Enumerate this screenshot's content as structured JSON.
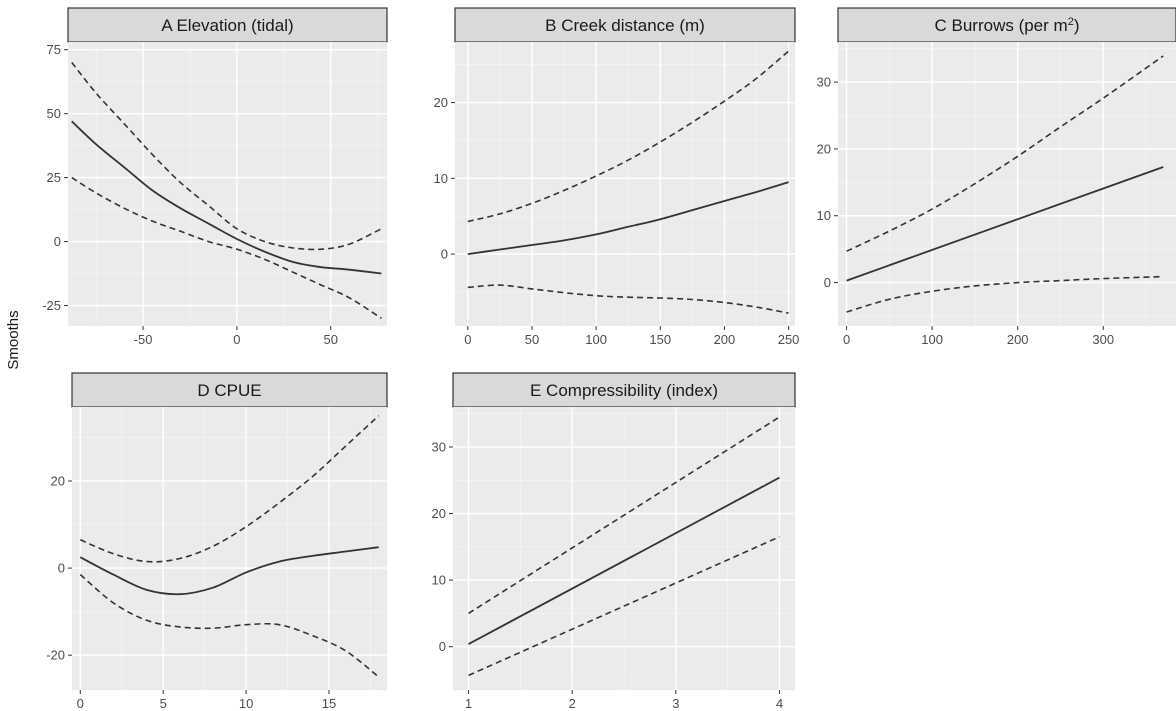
{
  "chart_data": {
    "ylabel": "Smooths",
    "panels": [
      {
        "id": "A",
        "strip_label": "A  Elevation (tidal)",
        "type": "line",
        "xlim": [
          -90,
          80
        ],
        "ylim": [
          -33,
          78
        ],
        "xticks": [
          -50,
          0,
          50
        ],
        "yticks": [
          -25,
          0,
          25,
          50,
          75
        ],
        "series": [
          {
            "role": "fit",
            "x": [
              -88,
              -75,
              -60,
              -45,
              -30,
              -15,
              0,
              15,
              30,
              45,
              60,
              77
            ],
            "y": [
              47,
              38,
              29,
              20,
              13,
              7,
              1,
              -4,
              -8,
              -10,
              -11,
              -12.5
            ]
          },
          {
            "role": "upper",
            "x": [
              -88,
              -75,
              -60,
              -45,
              -30,
              -15,
              0,
              15,
              30,
              45,
              60,
              77
            ],
            "y": [
              70,
              58,
              46,
              34,
              23,
              14,
              5,
              0,
              -2.5,
              -3,
              -1,
              5
            ]
          },
          {
            "role": "lower",
            "x": [
              -88,
              -75,
              -60,
              -45,
              -30,
              -15,
              0,
              15,
              30,
              45,
              60,
              77
            ],
            "y": [
              25,
              19,
              13,
              8,
              4,
              0,
              -3,
              -7,
              -12,
              -17,
              -22,
              -30
            ]
          }
        ]
      },
      {
        "id": "B",
        "strip_label": "B  Creek distance (m)",
        "type": "line",
        "xlim": [
          -10,
          255
        ],
        "ylim": [
          -9.5,
          28
        ],
        "xticks": [
          0,
          50,
          100,
          150,
          200,
          250
        ],
        "yticks": [
          0,
          10,
          20
        ],
        "series": [
          {
            "role": "fit",
            "x": [
              0,
              25,
              50,
              75,
              100,
              125,
              150,
              175,
              200,
              225,
              250
            ],
            "y": [
              0,
              0.6,
              1.2,
              1.8,
              2.6,
              3.6,
              4.6,
              5.8,
              7.0,
              8.2,
              9.5
            ]
          },
          {
            "role": "upper",
            "x": [
              0,
              25,
              50,
              75,
              100,
              125,
              150,
              175,
              200,
              225,
              250
            ],
            "y": [
              4.3,
              5.3,
              6.7,
              8.4,
              10.3,
              12.4,
              14.8,
              17.4,
              20.2,
              23.2,
              26.8
            ]
          },
          {
            "role": "lower",
            "x": [
              0,
              25,
              50,
              75,
              100,
              125,
              150,
              175,
              200,
              225,
              250
            ],
            "y": [
              -4.4,
              -4.1,
              -4.6,
              -5.1,
              -5.5,
              -5.7,
              -5.8,
              -6.0,
              -6.4,
              -7.0,
              -7.8
            ]
          }
        ]
      },
      {
        "id": "C",
        "strip_label": "C  Burrows (per m",
        "strip_label_sup": "2",
        "strip_label_end": ")",
        "type": "line",
        "xlim": [
          -10,
          385
        ],
        "ylim": [
          -6.5,
          36
        ],
        "xticks": [
          0,
          100,
          200,
          300
        ],
        "yticks": [
          0,
          10,
          20,
          30
        ],
        "series": [
          {
            "role": "fit",
            "x": [
              0,
              370
            ],
            "y": [
              0.3,
              17.3
            ]
          },
          {
            "role": "upper",
            "x": [
              0,
              50,
              100,
              150,
              200,
              250,
              300,
              370
            ],
            "y": [
              4.7,
              7.7,
              11.0,
              14.8,
              18.9,
              23.3,
              27.6,
              33.9
            ]
          },
          {
            "role": "lower",
            "x": [
              0,
              50,
              100,
              150,
              200,
              250,
              300,
              370
            ],
            "y": [
              -4.4,
              -2.5,
              -1.3,
              -0.5,
              0.0,
              0.3,
              0.6,
              0.9
            ]
          }
        ]
      },
      {
        "id": "D",
        "strip_label": "D  CPUE",
        "type": "line",
        "xlim": [
          -0.5,
          18.5
        ],
        "ylim": [
          -28,
          37
        ],
        "xticks": [
          0,
          5,
          10,
          15
        ],
        "yticks": [
          -20,
          0,
          20
        ],
        "series": [
          {
            "role": "fit",
            "x": [
              0,
              2,
              4,
              6,
              8,
              10,
              12,
              14,
              16,
              18
            ],
            "y": [
              2.5,
              -1.5,
              -5,
              -6,
              -4.5,
              -1,
              1.5,
              2.8,
              3.8,
              4.8
            ]
          },
          {
            "role": "upper",
            "x": [
              0,
              2,
              4,
              6,
              8,
              10,
              12,
              14,
              16,
              18
            ],
            "y": [
              6.5,
              3.3,
              1.5,
              2.2,
              5,
              9.5,
              15,
              21,
              28,
              35
            ]
          },
          {
            "role": "lower",
            "x": [
              0,
              2,
              4,
              6,
              8,
              10,
              12,
              14,
              16,
              18
            ],
            "y": [
              -1.5,
              -8,
              -12,
              -13.5,
              -13.8,
              -13,
              -13,
              -15.5,
              -19,
              -25
            ]
          }
        ]
      },
      {
        "id": "E",
        "strip_label": "E  Compressibility (index)",
        "type": "line",
        "xlim": [
          0.85,
          4.15
        ],
        "ylim": [
          -6.5,
          36
        ],
        "xticks": [
          1,
          2,
          3,
          4
        ],
        "yticks": [
          0,
          10,
          20,
          30
        ],
        "series": [
          {
            "role": "fit",
            "x": [
              1,
              4
            ],
            "y": [
              0.4,
              25.4
            ]
          },
          {
            "role": "upper",
            "x": [
              1,
              4
            ],
            "y": [
              5.0,
              34.5
            ]
          },
          {
            "role": "lower",
            "x": [
              1,
              4
            ],
            "y": [
              -4.3,
              16.5
            ]
          }
        ]
      }
    ]
  }
}
